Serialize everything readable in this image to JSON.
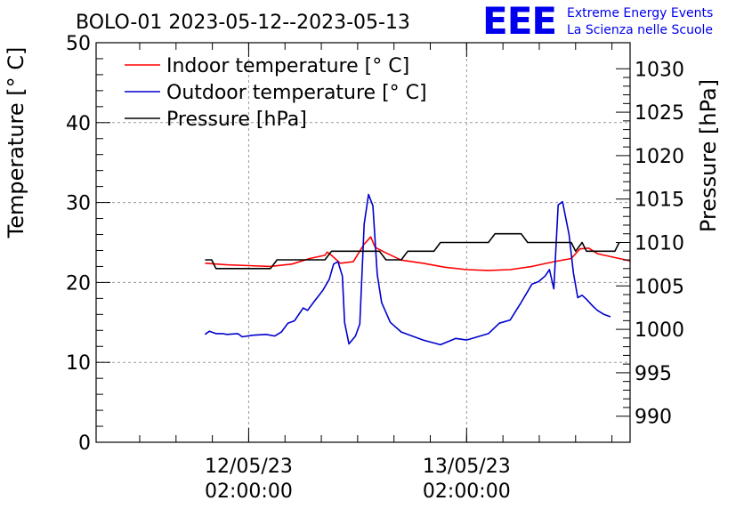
{
  "title": "BOLO-01 2023-05-12--2023-05-13",
  "logo": {
    "text": "EEE",
    "line1": "Extreme Energy Events",
    "line2": "La Scienza nelle Scuole",
    "color": "#0000ee"
  },
  "chart_data": {
    "type": "line",
    "title": "BOLO-01 2023-05-12--2023-05-13",
    "xlabel": "",
    "ylabel": "Temperature [° C]",
    "y2label": "Pressure [hPa]",
    "ylim": [
      0,
      50
    ],
    "y2lim": [
      987,
      1033
    ],
    "yticks": [
      0,
      10,
      20,
      30,
      40,
      50
    ],
    "y2ticks": [
      990,
      995,
      1000,
      1005,
      1010,
      1015,
      1020,
      1025,
      1030
    ],
    "xlim": [
      -0.7,
      1.75
    ],
    "xticks": [
      {
        "x": 0,
        "line1": "12/05/23",
        "line2": "02:00:00"
      },
      {
        "x": 1,
        "line1": "13/05/23",
        "line2": "02:00:00"
      }
    ],
    "grid": true,
    "legend_position": "top-left",
    "series": [
      {
        "name": "Indoor temperature [° C]",
        "axis": "left",
        "color": "#ff0000",
        "points": [
          [
            -0.2,
            22.4
          ],
          [
            -0.1,
            22.2
          ],
          [
            0,
            22.1
          ],
          [
            0.1,
            22
          ],
          [
            0.2,
            22.3
          ],
          [
            0.28,
            23
          ],
          [
            0.35,
            23.4
          ],
          [
            0.36,
            23.8
          ],
          [
            0.38,
            23.4
          ],
          [
            0.42,
            22.4
          ],
          [
            0.48,
            22.6
          ],
          [
            0.53,
            24.8
          ],
          [
            0.56,
            25.7
          ],
          [
            0.58,
            24.4
          ],
          [
            0.63,
            23.7
          ],
          [
            0.7,
            22.8
          ],
          [
            0.8,
            22.4
          ],
          [
            0.9,
            21.9
          ],
          [
            1.0,
            21.6
          ],
          [
            1.1,
            21.5
          ],
          [
            1.2,
            21.6
          ],
          [
            1.3,
            22
          ],
          [
            1.4,
            22.6
          ],
          [
            1.48,
            23
          ],
          [
            1.52,
            24.2
          ],
          [
            1.56,
            24.3
          ],
          [
            1.6,
            23.6
          ],
          [
            1.7,
            23
          ],
          [
            1.75,
            22.7
          ]
        ]
      },
      {
        "name": "Outdoor temperature [° C]",
        "axis": "left",
        "color": "#0000cc",
        "points": [
          [
            -0.2,
            13.5
          ],
          [
            -0.18,
            13.9
          ],
          [
            -0.15,
            13.6
          ],
          [
            -0.12,
            13.6
          ],
          [
            -0.1,
            13.5
          ],
          [
            -0.05,
            13.6
          ],
          [
            -0.03,
            13.2
          ],
          [
            0.02,
            13.4
          ],
          [
            0.08,
            13.5
          ],
          [
            0.12,
            13.3
          ],
          [
            0.15,
            13.8
          ],
          [
            0.18,
            14.9
          ],
          [
            0.21,
            15.2
          ],
          [
            0.25,
            16.8
          ],
          [
            0.27,
            16.5
          ],
          [
            0.3,
            17.6
          ],
          [
            0.34,
            19
          ],
          [
            0.37,
            20.4
          ],
          [
            0.39,
            22.3
          ],
          [
            0.41,
            22.6
          ],
          [
            0.43,
            20.8
          ],
          [
            0.44,
            15
          ],
          [
            0.46,
            12.3
          ],
          [
            0.49,
            13.3
          ],
          [
            0.51,
            14.8
          ],
          [
            0.53,
            27.3
          ],
          [
            0.55,
            31
          ],
          [
            0.57,
            29.6
          ],
          [
            0.59,
            21
          ],
          [
            0.61,
            17.5
          ],
          [
            0.65,
            15
          ],
          [
            0.7,
            13.8
          ],
          [
            0.8,
            12.8
          ],
          [
            0.88,
            12.2
          ],
          [
            0.95,
            13
          ],
          [
            1.0,
            12.8
          ],
          [
            1.05,
            13.2
          ],
          [
            1.1,
            13.6
          ],
          [
            1.15,
            14.9
          ],
          [
            1.2,
            15.3
          ],
          [
            1.25,
            17.5
          ],
          [
            1.3,
            19.8
          ],
          [
            1.33,
            20.1
          ],
          [
            1.36,
            20.8
          ],
          [
            1.38,
            21.6
          ],
          [
            1.4,
            19.2
          ],
          [
            1.42,
            29.7
          ],
          [
            1.44,
            30.1
          ],
          [
            1.47,
            26
          ],
          [
            1.49,
            21.2
          ],
          [
            1.51,
            18.1
          ],
          [
            1.53,
            18.4
          ],
          [
            1.55,
            17.9
          ],
          [
            1.58,
            17
          ],
          [
            1.6,
            16.5
          ],
          [
            1.63,
            16
          ],
          [
            1.66,
            15.7
          ]
        ]
      },
      {
        "name": "Pressure [hPa]",
        "axis": "right",
        "color": "#000000",
        "points": [
          [
            -0.2,
            1008
          ],
          [
            -0.17,
            1008
          ],
          [
            -0.15,
            1007
          ],
          [
            0.1,
            1007
          ],
          [
            0.13,
            1008
          ],
          [
            0.35,
            1008
          ],
          [
            0.38,
            1009
          ],
          [
            0.6,
            1009
          ],
          [
            0.63,
            1008
          ],
          [
            0.7,
            1008
          ],
          [
            0.73,
            1009
          ],
          [
            0.85,
            1009
          ],
          [
            0.88,
            1010
          ],
          [
            1.1,
            1010
          ],
          [
            1.13,
            1011
          ],
          [
            1.25,
            1011
          ],
          [
            1.28,
            1010
          ],
          [
            1.48,
            1010
          ],
          [
            1.5,
            1009
          ],
          [
            1.53,
            1010
          ],
          [
            1.55,
            1009
          ],
          [
            1.68,
            1009
          ],
          [
            1.7,
            1010
          ]
        ]
      }
    ]
  }
}
